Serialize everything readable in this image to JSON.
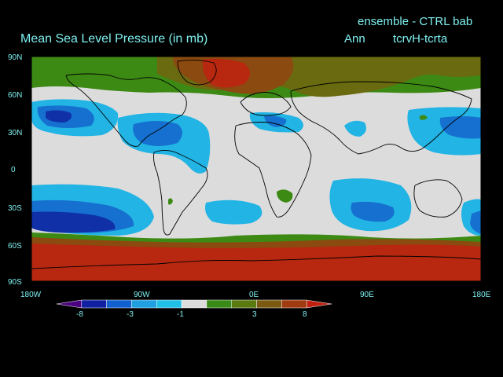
{
  "header": {
    "ensemble_label": "ensemble - CTRL bab",
    "title": "Mean Sea Level Pressure (in mb)",
    "period": "Ann",
    "experiment": "tcrvH-tcrta"
  },
  "axes": {
    "lat_labels": [
      "90N",
      "60N",
      "30N",
      "0",
      "30S",
      "60S",
      "90S"
    ],
    "lon_labels": [
      "180W",
      "90W",
      "0E",
      "90E",
      "180E"
    ]
  },
  "colorbar": {
    "labels": [
      "-8",
      "-3",
      "-1",
      "3",
      "8"
    ],
    "colors": [
      "#4b0082",
      "#1020a0",
      "#1060d0",
      "#20a0e0",
      "#20c0e8",
      "#dcdcdc",
      "#3a8a18",
      "#5a7a10",
      "#7a5a10",
      "#a03a10",
      "#c02010"
    ]
  },
  "map": {
    "colors": {
      "neutral": "#dcdcdc",
      "light_blue": "#22b4e4",
      "mid_blue": "#1670d0",
      "dark_blue": "#1030a8",
      "green": "#3c8a14",
      "olive": "#6a6a10",
      "brown": "#8a4a10",
      "red": "#b82810",
      "coast": "#000000"
    }
  }
}
